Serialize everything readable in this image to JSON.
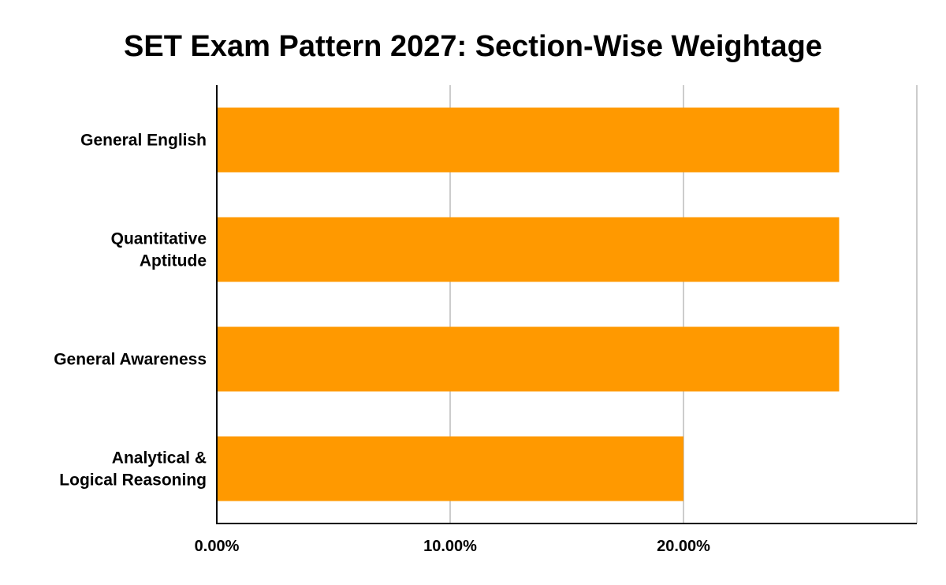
{
  "chart_data": {
    "type": "bar",
    "orientation": "horizontal",
    "title": "SET Exam Pattern 2027: Section-Wise Weightage",
    "xlabel": "",
    "ylabel": "",
    "categories": [
      [
        "General English"
      ],
      [
        "Quantitative",
        "Aptitude"
      ],
      [
        "General Awareness"
      ],
      [
        "Analytical &",
        "Logical Reasoning"
      ]
    ],
    "values": [
      26.67,
      26.67,
      26.67,
      20.0
    ],
    "xlim": [
      0,
      30
    ],
    "x_ticks": [
      {
        "value": 0,
        "label": "0.00%"
      },
      {
        "value": 10,
        "label": "10.00%"
      },
      {
        "value": 20,
        "label": "20.00%"
      }
    ],
    "gridlines": [
      10,
      20,
      30
    ],
    "grid": true,
    "bar_color": "#ff9900",
    "grid_color": "#cccccc",
    "axis_color": "#000000"
  }
}
